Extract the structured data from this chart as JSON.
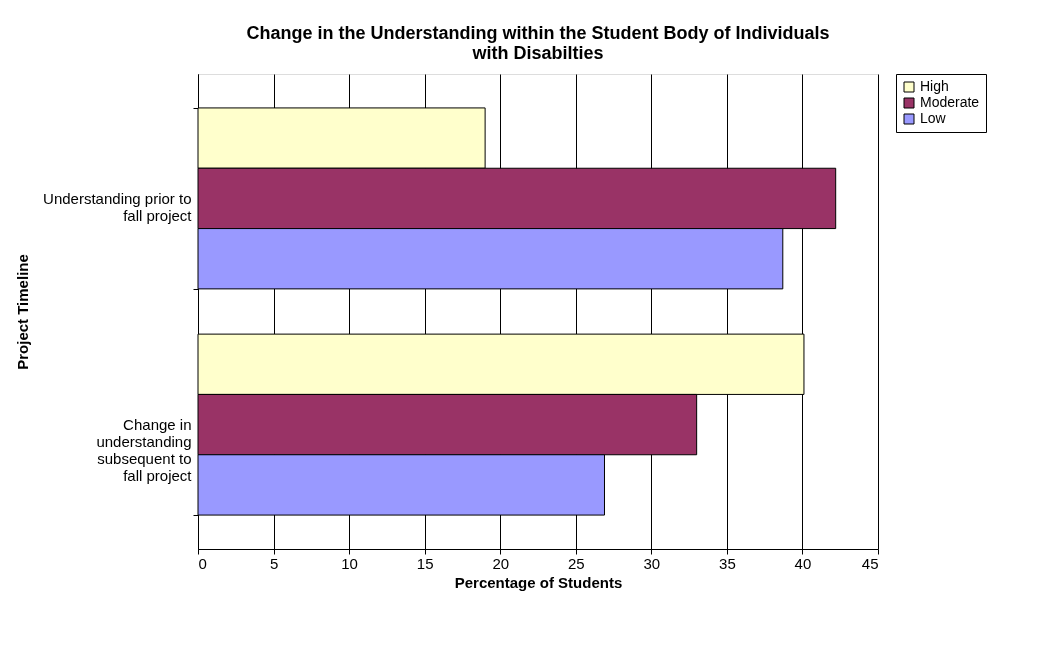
{
  "chart_data": {
    "type": "bar",
    "orientation": "horizontal",
    "title": "Change in the Understanding within the Student Body of Individuals with Disabilties",
    "xlabel": "Percentage of Students",
    "ylabel": "Project Timeline",
    "categories": [
      "Understanding prior to fall project",
      "Change in understanding subsequent to fall project"
    ],
    "series": [
      {
        "name": "High",
        "color": "#ffffcc",
        "values": [
          19.0,
          40.1
        ]
      },
      {
        "name": "Moderate",
        "color": "#993366",
        "values": [
          42.2,
          33.0
        ]
      },
      {
        "name": "Low",
        "color": "#9999ff",
        "values": [
          38.7,
          26.9
        ]
      }
    ],
    "xlim": [
      0,
      45
    ],
    "xticks": [
      0,
      5,
      10,
      15,
      20,
      25,
      30,
      35,
      40,
      45
    ],
    "grid": "x",
    "legend": "right"
  }
}
